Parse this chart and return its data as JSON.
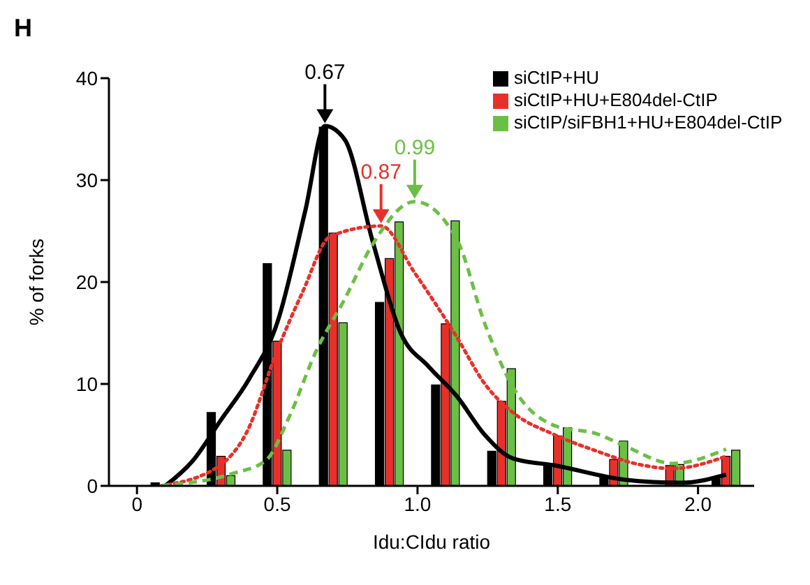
{
  "chart_data": {
    "type": "bar",
    "xlabel": "Idu:CIdu ratio",
    "ylabel": "% of forks",
    "x": [
      0.1,
      0.3,
      0.5,
      0.7,
      0.9,
      1.1,
      1.3,
      1.5,
      1.7,
      1.9,
      2.1
    ],
    "xlim": [
      -0.1,
      2.2
    ],
    "xticks": [
      0,
      0.5,
      {
        "value": 1,
        "label": "1.0"
      },
      1.5,
      {
        "value": 2,
        "label": "2.0"
      }
    ],
    "ylim": [
      0,
      40
    ],
    "yticks": [
      0,
      10,
      20,
      30,
      40
    ],
    "series": [
      {
        "name": "siCtIP+HU",
        "color": "#000000",
        "values": [
          0.3,
          7.2,
          21.8,
          35.2,
          18,
          9.9,
          3.4,
          2.0,
          0.9,
          null,
          0.7
        ]
      },
      {
        "name": "siCtIP+HU+E804del-CtIP",
        "color": "#e8302a",
        "values": [
          0,
          2.9,
          14.2,
          24.8,
          22.3,
          15.9,
          8.3,
          4.9,
          2.6,
          2.0,
          2.9
        ]
      },
      {
        "name": "siCtIP/siFBH1+HU+E804del-CtIP",
        "color": "#6cbf45",
        "values": [
          0,
          1.0,
          3.5,
          16,
          25.9,
          26,
          11.5,
          5.7,
          4.4,
          2.1,
          3.5
        ]
      },
      {
        "type": "line",
        "color": "#000000",
        "line_style": "solid",
        "x": [
          0.1,
          0.2,
          0.3,
          0.4,
          0.5,
          0.6,
          0.67,
          0.74,
          0.84,
          0.94,
          1.04,
          1.14,
          1.24,
          1.34,
          1.49,
          1.74,
          1.94,
          2.1
        ],
        "values": [
          0,
          2.5,
          6.5,
          10.5,
          16,
          27,
          35.3,
          34,
          24,
          15,
          11.7,
          8.8,
          5,
          2.7,
          2.0,
          0.6,
          0.3,
          1.1
        ]
      },
      {
        "type": "line",
        "color": "#e8302a",
        "line_style": "dotted",
        "x": [
          0.085,
          0.29,
          0.39,
          0.5,
          0.59,
          0.69,
          0.87,
          0.99,
          1.14,
          1.24,
          1.34,
          1.49,
          1.64,
          1.79,
          1.91,
          2.1
        ],
        "values": [
          0,
          1.9,
          5.2,
          13.3,
          19,
          24.5,
          25.5,
          20.9,
          14.6,
          10,
          7.2,
          5,
          3.4,
          2.1,
          1.7,
          2.9
        ]
      },
      {
        "type": "line",
        "color": "#6cbf45",
        "line_style": "dashed",
        "x": [
          0.085,
          0.34,
          0.46,
          0.54,
          0.64,
          0.74,
          0.84,
          0.99,
          1.14,
          1.24,
          1.34,
          1.49,
          1.64,
          1.74,
          1.91,
          2.1
        ],
        "values": [
          0,
          1.2,
          2.5,
          6.6,
          13.3,
          18.3,
          23.7,
          27.9,
          24.2,
          15.9,
          9.7,
          5.9,
          5.1,
          3.9,
          2.2,
          3.6
        ]
      }
    ],
    "annotations": [
      {
        "text": "0.67",
        "x": 0.67,
        "y": 35.3
      },
      {
        "text": "0.87",
        "x": 0.87,
        "y": 25.5
      },
      {
        "text": "0.99",
        "x": 0.99,
        "y": 27.9
      },
      "H"
    ],
    "legend": "top right",
    "marker": "none"
  }
}
